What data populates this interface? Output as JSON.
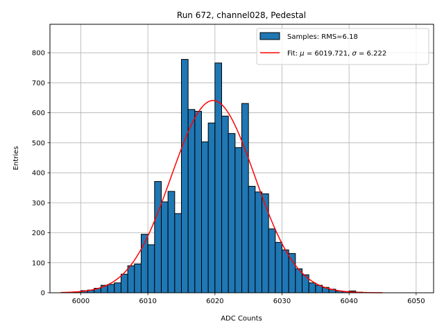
{
  "chart_data": {
    "type": "bar",
    "title": "Run 672, channel028, Pedestal",
    "xlabel": "ADC Counts",
    "ylabel": "Entries",
    "xlim": [
      5995.4,
      6052.6
    ],
    "ylim": [
      0,
      895
    ],
    "xticks": [
      6000,
      6010,
      6020,
      6030,
      6040,
      6050
    ],
    "yticks": [
      0,
      100,
      200,
      300,
      400,
      500,
      600,
      700,
      800
    ],
    "grid": true,
    "legend_placement": "top-right",
    "histogram": {
      "name": "Samples: RMS=6.18",
      "bin_edges": [
        5998,
        5999,
        6000,
        6001,
        6002,
        6003,
        6004,
        6005,
        6006,
        6007,
        6008,
        6009,
        6010,
        6011,
        6012,
        6013,
        6014,
        6015,
        6016,
        6017,
        6018,
        6019,
        6020,
        6021,
        6022,
        6023,
        6024,
        6025,
        6026,
        6027,
        6028,
        6029,
        6030,
        6031,
        6032,
        6033,
        6034,
        6035,
        6036,
        6037,
        6038,
        6039,
        6040,
        6041,
        6042
      ],
      "counts": [
        2,
        3,
        7,
        9,
        15,
        25,
        28,
        33,
        62,
        90,
        96,
        195,
        160,
        371,
        303,
        338,
        264,
        778,
        611,
        605,
        503,
        566,
        766,
        589,
        531,
        484,
        631,
        355,
        336,
        330,
        213,
        168,
        143,
        131,
        80,
        60,
        33,
        25,
        18,
        12,
        6,
        4,
        6,
        2
      ],
      "color": "#1f77b4",
      "edgecolor": "#000000"
    },
    "fit": {
      "name": "Fit: μ = 6019.721, σ = 6.222",
      "name_parts": {
        "prefix": "Fit: ",
        "mu_sym": "μ",
        "mu_text": " = 6019.721, ",
        "sigma_sym": "σ",
        "sigma_text": " = 6.222"
      },
      "mu": 6019.721,
      "sigma": 6.222,
      "amplitude": 641,
      "x_range": [
        5997,
        6045
      ],
      "color": "#ff0000"
    }
  }
}
